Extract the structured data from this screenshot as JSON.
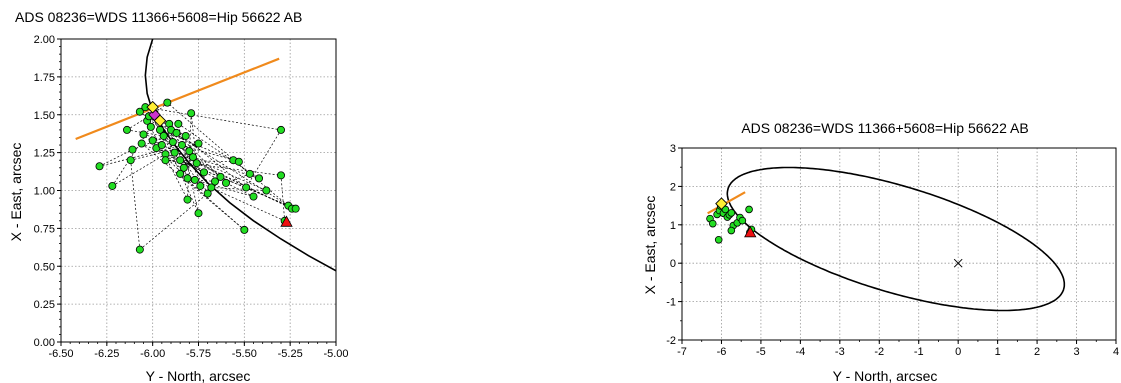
{
  "chart_data": [
    {
      "type": "scatter",
      "title": "ADS 08236=WDS 11366+5608=Hip 56622 AB",
      "xlabel": "Y - North, arcsec",
      "ylabel": "X - East, arcsec",
      "xlim": [
        -6.5,
        -5.0
      ],
      "ylim": [
        0.0,
        2.0
      ],
      "x_ticks": [
        "-6.50",
        "-6.25",
        "-6.00",
        "-5.75",
        "-5.50",
        "-5.25",
        "-5.00"
      ],
      "y_ticks": [
        "0.00",
        "0.25",
        "0.50",
        "0.75",
        "1.00",
        "1.25",
        "1.50",
        "1.75",
        "2.00"
      ],
      "grid": true,
      "colors": {
        "observations": "#22dd22",
        "orbit": "#000000",
        "node_line": "#f08a1c",
        "latest": "#ffee33",
        "calc": "#cc33cc",
        "first": "#ee1111"
      },
      "series": [
        {
          "kind": "observations",
          "points": [
            [
              -6.29,
              1.16
            ],
            [
              -6.22,
              1.03
            ],
            [
              -6.14,
              1.4
            ],
            [
              -6.11,
              1.27
            ],
            [
              -6.07,
              1.52
            ],
            [
              -6.06,
              1.31
            ],
            [
              -6.05,
              1.37
            ],
            [
              -6.04,
              1.55
            ],
            [
              -6.03,
              1.46
            ],
            [
              -6.02,
              1.49
            ],
            [
              -6.01,
              1.42
            ],
            [
              -6.0,
              1.33
            ],
            [
              -5.99,
              1.51
            ],
            [
              -5.98,
              1.28
            ],
            [
              -5.97,
              1.47
            ],
            [
              -5.96,
              1.4
            ],
            [
              -5.95,
              1.3
            ],
            [
              -5.94,
              1.36
            ],
            [
              -5.93,
              1.24
            ],
            [
              -5.92,
              1.58
            ],
            [
              -5.91,
              1.44
            ],
            [
              -5.9,
              1.4
            ],
            [
              -5.89,
              1.32
            ],
            [
              -5.88,
              1.25
            ],
            [
              -5.87,
              1.38
            ],
            [
              -5.86,
              1.44
            ],
            [
              -5.85,
              1.2
            ],
            [
              -5.84,
              1.3
            ],
            [
              -5.83,
              1.15
            ],
            [
              -5.82,
              1.36
            ],
            [
              -5.81,
              1.08
            ],
            [
              -5.8,
              1.26
            ],
            [
              -5.79,
              1.51
            ],
            [
              -5.78,
              1.22
            ],
            [
              -5.77,
              1.07
            ],
            [
              -5.76,
              1.18
            ],
            [
              -5.75,
              1.31
            ],
            [
              -5.74,
              1.03
            ],
            [
              -5.72,
              1.12
            ],
            [
              -5.7,
              0.98
            ],
            [
              -5.68,
              1.02
            ],
            [
              -5.66,
              1.06
            ],
            [
              -5.63,
              1.09
            ],
            [
              -5.6,
              1.05
            ],
            [
              -5.56,
              1.2
            ],
            [
              -5.53,
              1.19
            ],
            [
              -5.5,
              0.74
            ],
            [
              -5.49,
              1.02
            ],
            [
              -5.47,
              1.11
            ],
            [
              -5.45,
              0.96
            ],
            [
              -5.42,
              1.08
            ],
            [
              -5.38,
              1.0
            ],
            [
              -5.3,
              1.4
            ],
            [
              -5.3,
              1.1
            ],
            [
              -5.28,
              0.8
            ],
            [
              -5.26,
              0.9
            ],
            [
              -5.24,
              0.88
            ],
            [
              -5.22,
              0.88
            ],
            [
              -5.75,
              0.85
            ],
            [
              -5.81,
              0.94
            ],
            [
              -6.07,
              0.61
            ],
            [
              -5.85,
              1.11
            ],
            [
              -5.93,
              1.2
            ],
            [
              -6.12,
              1.2
            ]
          ]
        },
        {
          "kind": "latest",
          "points": [
            [
              -6.0,
              1.55
            ],
            [
              -5.96,
              1.46
            ]
          ]
        },
        {
          "kind": "calc",
          "points": [
            [
              -5.99,
              1.5
            ]
          ]
        },
        {
          "kind": "first",
          "points": [
            [
              -5.27,
              0.79
            ]
          ]
        }
      ]
    },
    {
      "type": "scatter",
      "title": "ADS 08236=WDS 11366+5608=Hip 56622 AB",
      "xlabel": "Y - North, arcsec",
      "ylabel": "X - East, arcsec",
      "xlim": [
        -7,
        4
      ],
      "ylim": [
        -2,
        3
      ],
      "x_ticks": [
        "-7",
        "-6",
        "-5",
        "-4",
        "-3",
        "-2",
        "-1",
        "0",
        "1",
        "2",
        "3",
        "4"
      ],
      "y_ticks": [
        "-2",
        "-1",
        "0",
        "1",
        "2",
        "3"
      ],
      "grid": true,
      "center_marker": [
        0,
        0
      ],
      "series": [
        {
          "kind": "observations",
          "points": [
            [
              -6.29,
              1.16
            ],
            [
              -6.22,
              1.03
            ],
            [
              -6.11,
              1.27
            ],
            [
              -6.05,
              1.37
            ],
            [
              -6.02,
              1.49
            ],
            [
              -5.95,
              1.3
            ],
            [
              -5.9,
              1.4
            ],
            [
              -5.85,
              1.2
            ],
            [
              -5.8,
              1.26
            ],
            [
              -5.75,
              1.31
            ],
            [
              -5.7,
              0.98
            ],
            [
              -5.6,
              1.05
            ],
            [
              -5.53,
              1.19
            ],
            [
              -5.47,
              1.11
            ],
            [
              -5.3,
              1.4
            ],
            [
              -5.28,
              0.8
            ],
            [
              -5.24,
              0.88
            ],
            [
              -6.07,
              0.61
            ],
            [
              -5.75,
              0.85
            ]
          ]
        },
        {
          "kind": "latest",
          "points": [
            [
              -6.0,
              1.55
            ]
          ]
        },
        {
          "kind": "first",
          "points": [
            [
              -5.27,
              0.79
            ]
          ]
        }
      ]
    }
  ]
}
